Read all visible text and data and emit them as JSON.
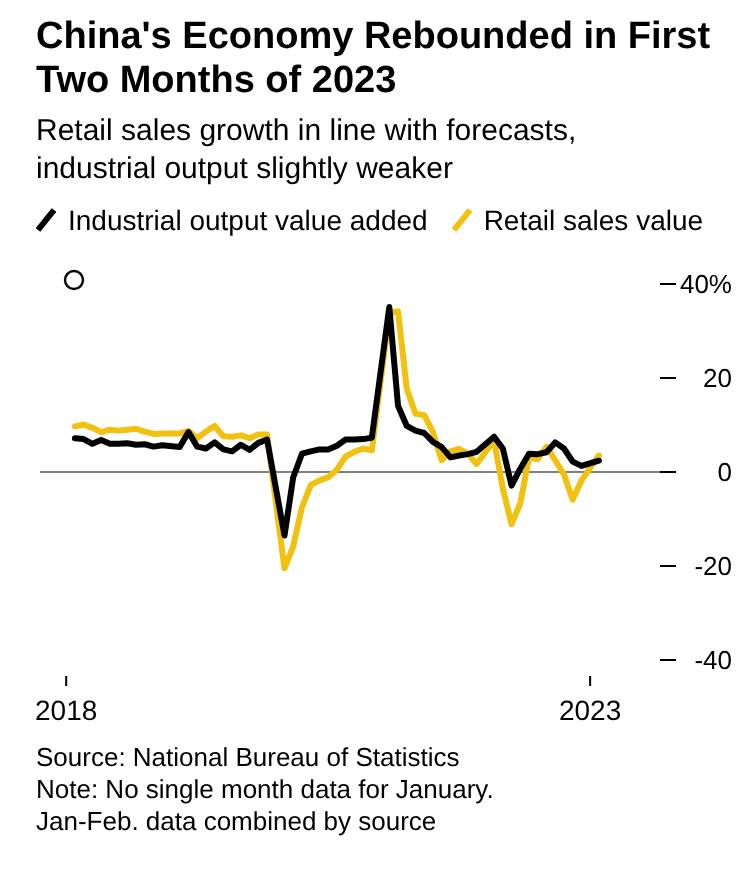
{
  "chart_data": {
    "type": "line",
    "title": "China's Economy Rebounded in First Two Months of 2023",
    "subtitle": "Retail sales growth in line with forecasts, industrial output slightly weaker",
    "annotations": [
      "Source: National Bureau of Statistics",
      "Note: No single month data for January.",
      "Jan-Feb. data combined by source"
    ],
    "x": [
      "2018-02",
      "2018-03",
      "2018-04",
      "2018-05",
      "2018-06",
      "2018-07",
      "2018-08",
      "2018-09",
      "2018-10",
      "2018-11",
      "2018-12",
      "2019-02",
      "2019-03",
      "2019-04",
      "2019-05",
      "2019-06",
      "2019-07",
      "2019-08",
      "2019-09",
      "2019-10",
      "2019-11",
      "2019-12",
      "2020-02",
      "2020-03",
      "2020-04",
      "2020-05",
      "2020-06",
      "2020-07",
      "2020-08",
      "2020-09",
      "2020-10",
      "2020-11",
      "2020-12",
      "2021-02",
      "2021-03",
      "2021-04",
      "2021-05",
      "2021-06",
      "2021-07",
      "2021-08",
      "2021-09",
      "2021-10",
      "2021-11",
      "2021-12",
      "2022-02",
      "2022-03",
      "2022-04",
      "2022-05",
      "2022-06",
      "2022-07",
      "2022-08",
      "2022-09",
      "2022-10",
      "2022-11",
      "2022-12",
      "2023-02"
    ],
    "series": [
      {
        "name": "Retail sales value",
        "color": "#f2c00f",
        "values": [
          9.7,
          10.1,
          9.4,
          8.5,
          9.0,
          8.8,
          9.0,
          9.2,
          8.6,
          8.1,
          8.2,
          8.2,
          8.7,
          7.2,
          8.6,
          9.8,
          7.6,
          7.5,
          7.8,
          7.2,
          8.0,
          8.0,
          -20.5,
          -15.8,
          -7.5,
          -2.8,
          -1.8,
          -1.1,
          0.5,
          3.3,
          4.3,
          5.0,
          4.6,
          33.8,
          34.2,
          17.7,
          12.4,
          12.1,
          8.5,
          2.5,
          4.4,
          4.9,
          3.9,
          1.7,
          6.7,
          -3.5,
          -11.1,
          -6.7,
          3.1,
          2.7,
          5.4,
          2.5,
          -0.5,
          -5.9,
          -1.8,
          3.5
        ]
      },
      {
        "name": "Industrial output value added",
        "color": "#000000",
        "values": [
          7.2,
          7.0,
          6.0,
          6.8,
          6.0,
          6.0,
          6.1,
          5.8,
          5.9,
          5.4,
          5.7,
          5.3,
          8.5,
          5.4,
          5.0,
          6.3,
          4.8,
          4.4,
          5.8,
          4.7,
          6.2,
          6.9,
          -13.5,
          -1.1,
          3.9,
          4.4,
          4.8,
          4.8,
          5.6,
          6.9,
          6.9,
          7.0,
          7.3,
          35.1,
          14.1,
          9.8,
          8.8,
          8.3,
          6.4,
          5.3,
          3.1,
          3.5,
          3.8,
          4.3,
          7.5,
          5.0,
          -2.9,
          0.7,
          3.9,
          3.8,
          4.2,
          6.3,
          5.0,
          2.2,
          1.3,
          2.4
        ]
      }
    ],
    "xlim": [
      "2017-10",
      "2023-09"
    ],
    "xticks": [
      "2018",
      "2023"
    ],
    "ylim": [
      -40,
      40
    ],
    "yticks": [
      {
        "value": 40,
        "label": "40%"
      },
      20,
      0,
      -20,
      -40
    ],
    "ref_lines": [
      {
        "axis": "y",
        "value": 0,
        "color": "#808080"
      }
    ],
    "grid": false,
    "legend": "top left",
    "marker": "none",
    "line_style": "solid"
  }
}
